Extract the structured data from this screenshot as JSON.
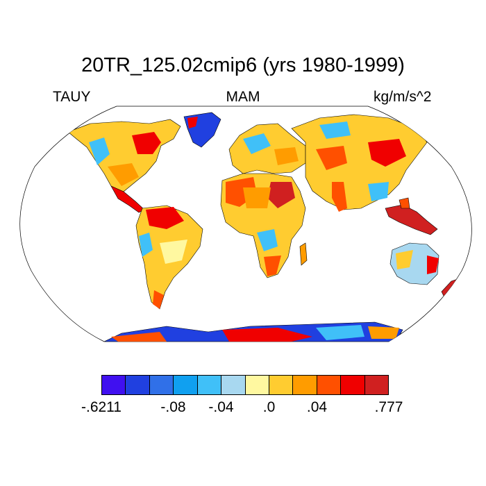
{
  "title": "20TR_125.02cmip6 (yrs 1980-1999)",
  "left_label": "TAUY",
  "center_label": "MAM",
  "right_label": "kg/m/s^2",
  "colorbar": {
    "colors": [
      "#4010f0",
      "#2040e0",
      "#3070e8",
      "#10a0f0",
      "#40c0f8",
      "#a8d8f0",
      "#fff8a0",
      "#ffcc30",
      "#ff9c00",
      "#ff5000",
      "#f00000",
      "#d02020"
    ],
    "tick_labels": [
      {
        "text": "-.6211",
        "boundary": 0
      },
      {
        "text": "-.08",
        "boundary": 3
      },
      {
        "text": "-.04",
        "boundary": 5
      },
      {
        "text": ".0",
        "boundary": 7
      },
      {
        "text": ".04",
        "boundary": 9
      },
      {
        "text": ".777",
        "boundary": 12
      }
    ]
  },
  "map": {
    "projection": "Robinson",
    "variable": "TAUY",
    "season": "MAM",
    "units": "kg/m/s^2"
  }
}
